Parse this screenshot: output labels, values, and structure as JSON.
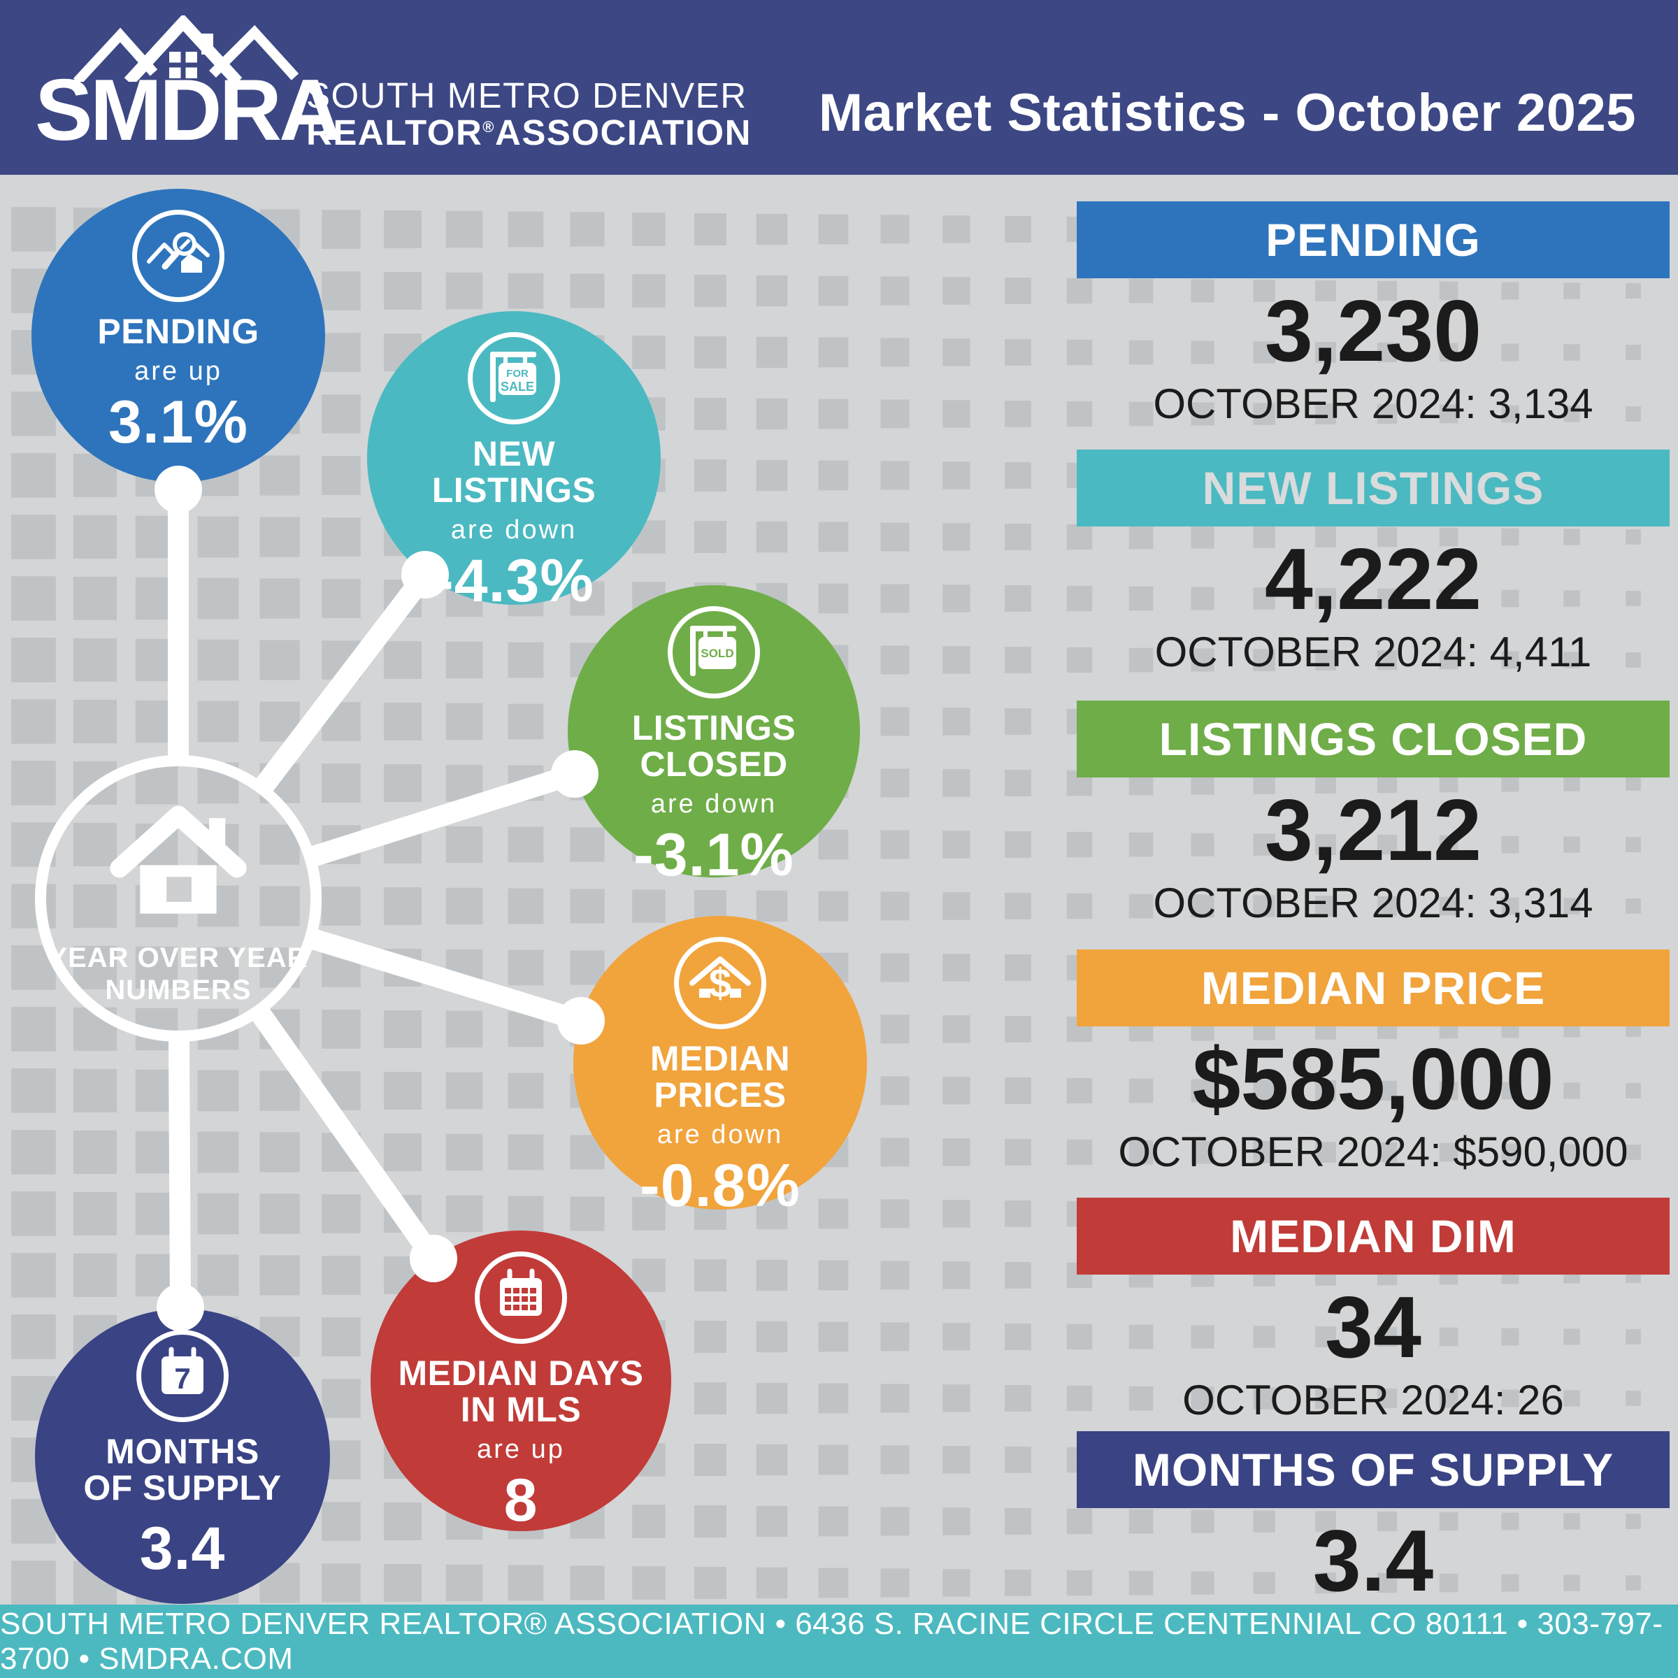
{
  "header": {
    "logo_acronym": "SMDRA",
    "logo_line1": "SOUTH METRO DENVER",
    "logo_realtor": "REALTOR",
    "logo_reg": "®",
    "logo_association": "ASSOCIATION",
    "title": "Market Statistics - October 2025"
  },
  "hub": {
    "label_line1": "YEAR OVER YEAR",
    "label_line2": "NUMBERS"
  },
  "bubbles": [
    {
      "id": "pending",
      "icon": "house-magnifier-icon",
      "title_line1": "PENDING",
      "title_line2": "",
      "subtitle": "are up",
      "value": "3.1%",
      "color": "#2E74BC",
      "icon_text1": "",
      "icon_text2": ""
    },
    {
      "id": "new-listings",
      "icon": "for-sale-sign-icon",
      "title_line1": "NEW",
      "title_line2": "LISTINGS",
      "subtitle": "are down",
      "value": "-4.3%",
      "color": "#4BB9C1",
      "icon_text1": "FOR",
      "icon_text2": "SALE"
    },
    {
      "id": "listings-closed",
      "icon": "sold-sign-icon",
      "title_line1": "LISTINGS",
      "title_line2": "CLOSED",
      "subtitle": "are down",
      "value": "-3.1%",
      "color": "#6FAD48",
      "icon_text1": "SOLD",
      "icon_text2": ""
    },
    {
      "id": "median-prices",
      "icon": "house-dollar-icon",
      "title_line1": "MEDIAN",
      "title_line2": "PRICES",
      "subtitle": "are down",
      "value": "-0.8%",
      "color": "#F1A33C",
      "icon_text1": "$",
      "icon_text2": ""
    },
    {
      "id": "median-days",
      "icon": "calendar-grid-icon",
      "title_line1": "MEDIAN DAYS",
      "title_line2": "IN MLS",
      "subtitle": "are up",
      "value": "8",
      "color": "#C13B38",
      "icon_text1": "",
      "icon_text2": ""
    },
    {
      "id": "months-supply",
      "icon": "calendar-7-icon",
      "title_line1": "MONTHS",
      "title_line2": "OF SUPPLY",
      "subtitle": "",
      "value": "3.4",
      "color": "#3A4384",
      "icon_text1": "7",
      "icon_text2": ""
    }
  ],
  "stats": {
    "blocks": [
      {
        "label": "PENDING",
        "value": "3,230",
        "comparison": "OCTOBER 2024: 3,134",
        "color": "#2E74BC",
        "label_color": "#FFFFFF"
      },
      {
        "label": "NEW LISTINGS",
        "value": "4,222",
        "comparison": "OCTOBER 2024: 4,411",
        "color": "#4BB9C1",
        "label_color": "#D9DBDC"
      },
      {
        "label": "LISTINGS CLOSED",
        "value": "3,212",
        "comparison": "OCTOBER 2024: 3,314",
        "color": "#6FAD48",
        "label_color": "#FFFFFF"
      },
      {
        "label": "MEDIAN PRICE",
        "value": "$585,000",
        "comparison": "OCTOBER 2024: $590,000",
        "color": "#F1A33C",
        "label_color": "#FFFFFF"
      },
      {
        "label": "MEDIAN DIM",
        "value": "34",
        "comparison": "OCTOBER 2024: 26",
        "color": "#C13B38",
        "label_color": "#FFFFFF"
      },
      {
        "label": "MONTHS OF SUPPLY",
        "value": "3.4",
        "comparison": "",
        "color": "#3A4384",
        "label_color": "#FFFFFF"
      }
    ]
  },
  "footer": {
    "text": "SOUTH METRO DENVER REALTOR® ASSOCIATION • 6436 S. RACINE CIRCLE CENTENNIAL CO 80111 • 303-797-3700 • SMDRA.COM"
  },
  "colors": {
    "header_bg": "#3C4784",
    "footer_bg": "#4CB9C0",
    "canvas_bg": "#D3D5D7",
    "pattern_square": "#BCBEC0"
  }
}
